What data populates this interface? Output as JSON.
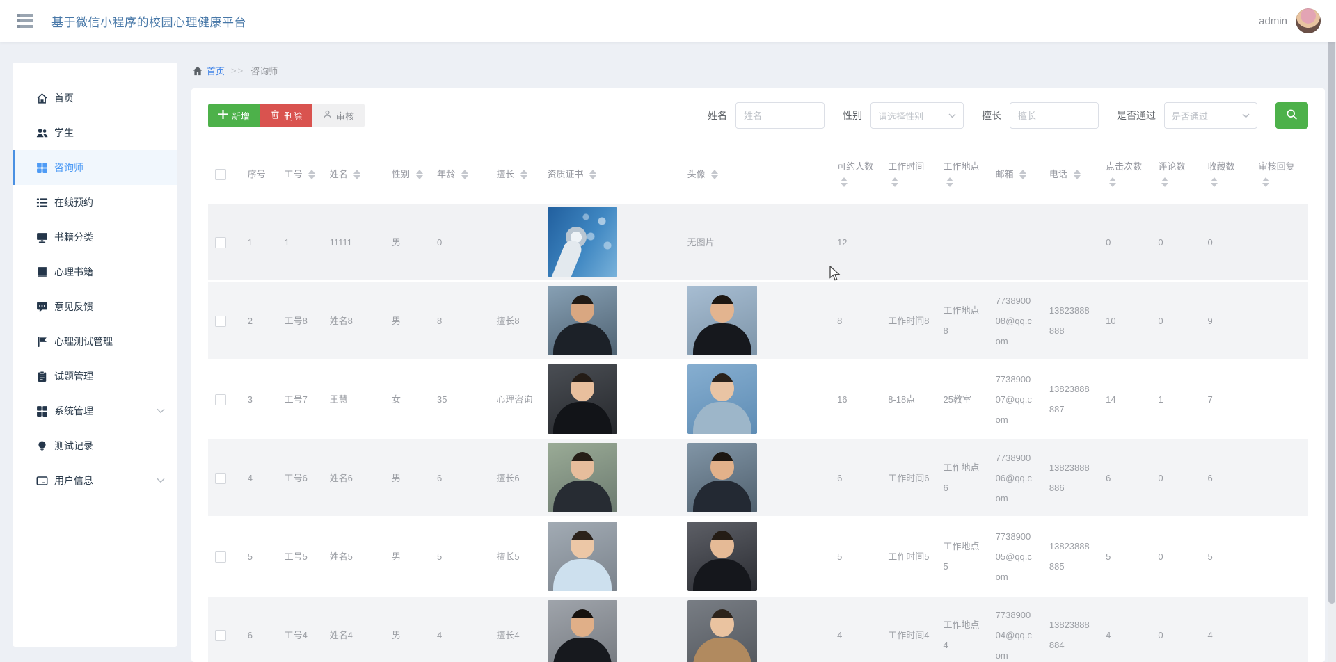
{
  "header": {
    "title": "基于微信小程序的校园心理健康平台",
    "user": "admin",
    "menu_icon": "hamburger-icon",
    "avatar_icon": "user-avatar"
  },
  "sidebar": {
    "items": [
      {
        "label": "首页",
        "icon": "home-icon",
        "active": false,
        "chevron": false
      },
      {
        "label": "学生",
        "icon": "students-icon",
        "active": false,
        "chevron": false
      },
      {
        "label": "咨询师",
        "icon": "grid-icon",
        "active": true,
        "chevron": false
      },
      {
        "label": "在线预约",
        "icon": "list-icon",
        "active": false,
        "chevron": false
      },
      {
        "label": "书籍分类",
        "icon": "monitor-icon",
        "active": false,
        "chevron": false
      },
      {
        "label": "心理书籍",
        "icon": "book-icon",
        "active": false,
        "chevron": false
      },
      {
        "label": "意见反馈",
        "icon": "feedback-icon",
        "active": false,
        "chevron": false
      },
      {
        "label": "心理测试管理",
        "icon": "flag-icon",
        "active": false,
        "chevron": false
      },
      {
        "label": "试题管理",
        "icon": "clipboard-icon",
        "active": false,
        "chevron": false
      },
      {
        "label": "系统管理",
        "icon": "grid-icon",
        "active": false,
        "chevron": true
      },
      {
        "label": "测试记录",
        "icon": "bulb-icon",
        "active": false,
        "chevron": false
      },
      {
        "label": "用户信息",
        "icon": "card-icon",
        "active": false,
        "chevron": true
      }
    ]
  },
  "breadcrumb": {
    "home": "首页",
    "separator": ">>",
    "current": "咨询师",
    "home_icon": "home-icon"
  },
  "toolbar": {
    "add_label": "新增",
    "add_icon": "plus-icon",
    "delete_label": "删除",
    "delete_icon": "trash-icon",
    "audit_label": "审核",
    "audit_icon": "person-icon"
  },
  "filters": {
    "name_label": "姓名",
    "name_placeholder": "姓名",
    "gender_label": "性别",
    "gender_placeholder": "请选择性别",
    "specialty_label": "擅长",
    "specialty_placeholder": "擅长",
    "pass_label": "是否通过",
    "pass_placeholder": "是否通过",
    "search_icon": "search-icon"
  },
  "table": {
    "columns": [
      {
        "key": "check",
        "label": "",
        "sortable": false,
        "checkbox": true
      },
      {
        "key": "seq",
        "label": "序号",
        "sortable": false
      },
      {
        "key": "job_no",
        "label": "工号",
        "sortable": true
      },
      {
        "key": "name",
        "label": "姓名",
        "sortable": true
      },
      {
        "key": "gender",
        "label": "性别",
        "sortable": true
      },
      {
        "key": "age",
        "label": "年龄",
        "sortable": true
      },
      {
        "key": "specialty",
        "label": "擅长",
        "sortable": true
      },
      {
        "key": "cert",
        "label": "资质证书",
        "sortable": true
      },
      {
        "key": "avatar",
        "label": "头像",
        "sortable": true
      },
      {
        "key": "bookable",
        "label": "可约人数",
        "sortable": true
      },
      {
        "key": "work_time",
        "label": "工作时间",
        "sortable": true
      },
      {
        "key": "work_place",
        "label": "工作地点",
        "sortable": true
      },
      {
        "key": "email",
        "label": "邮箱",
        "sortable": true
      },
      {
        "key": "phone",
        "label": "电话",
        "sortable": true
      },
      {
        "key": "clicks",
        "label": "点击次数",
        "sortable": true
      },
      {
        "key": "comments",
        "label": "评论数",
        "sortable": true
      },
      {
        "key": "favorites",
        "label": "收藏数",
        "sortable": true
      },
      {
        "key": "audit_reply",
        "label": "审核回复",
        "sortable": true
      }
    ],
    "rows": [
      {
        "seq": "1",
        "job_no": "1",
        "name": "11111",
        "gender": "男",
        "age": "0",
        "specialty": "",
        "cert_photo": "tech-blue",
        "avatar_photo": "",
        "avatar_text": "无图片",
        "bookable": "12",
        "work_time": "",
        "work_place": "",
        "email": "",
        "phone": "",
        "clicks": "0",
        "comments": "0",
        "favorites": "0",
        "audit_reply": "",
        "hovered": true
      },
      {
        "seq": "2",
        "job_no": "工号8",
        "name": "姓名8",
        "gender": "男",
        "age": "8",
        "specialty": "擅长8",
        "cert_photo": "man-suit-1",
        "avatar_photo": "man-suit-2",
        "avatar_text": "",
        "bookable": "8",
        "work_time": "工作时间8",
        "work_place": "工作地点8",
        "email": "773890008@qq.com",
        "phone": "13823888888",
        "clicks": "10",
        "comments": "0",
        "favorites": "9",
        "audit_reply": "",
        "hovered": false
      },
      {
        "seq": "3",
        "job_no": "工号7",
        "name": "王慧",
        "gender": "女",
        "age": "35",
        "specialty": "心理咨询",
        "cert_photo": "woman-dark-1",
        "avatar_photo": "woman-blue-1",
        "avatar_text": "",
        "bookable": "16",
        "work_time": "8-18点",
        "work_place": "25教室",
        "email": "773890007@qq.com",
        "phone": "13823888887",
        "clicks": "14",
        "comments": "1",
        "favorites": "7",
        "audit_reply": "",
        "hovered": false
      },
      {
        "seq": "4",
        "job_no": "工号6",
        "name": "姓名6",
        "gender": "男",
        "age": "6",
        "specialty": "擅长6",
        "cert_photo": "woman-outdoor",
        "avatar_photo": "man-suit-3",
        "avatar_text": "",
        "bookable": "6",
        "work_time": "工作时间6",
        "work_place": "工作地点6",
        "email": "773890006@qq.com",
        "phone": "13823888886",
        "clicks": "6",
        "comments": "0",
        "favorites": "6",
        "audit_reply": "",
        "hovered": false
      },
      {
        "seq": "5",
        "job_no": "工号5",
        "name": "姓名5",
        "gender": "男",
        "age": "5",
        "specialty": "擅长5",
        "cert_photo": "woman-shirt",
        "avatar_photo": "woman-dark-2",
        "avatar_text": "",
        "bookable": "5",
        "work_time": "工作时间5",
        "work_place": "工作地点5",
        "email": "773890005@qq.com",
        "phone": "13823888885",
        "clicks": "5",
        "comments": "0",
        "favorites": "5",
        "audit_reply": "",
        "hovered": false
      },
      {
        "seq": "6",
        "job_no": "工号4",
        "name": "姓名4",
        "gender": "男",
        "age": "4",
        "specialty": "擅长4",
        "cert_photo": "man-suit-4",
        "avatar_photo": "woman-coat",
        "avatar_text": "",
        "bookable": "4",
        "work_time": "工作时间4",
        "work_place": "工作地点4",
        "email": "773890004@qq.com",
        "phone": "13823888884",
        "clicks": "4",
        "comments": "0",
        "favorites": "4",
        "audit_reply": "",
        "hovered": false
      }
    ]
  },
  "colors": {
    "primary_blue": "#4a90e2",
    "title_blue": "#4878a8",
    "green": "#4db14a",
    "red": "#d9534f",
    "stripe_gray": "#f3f4f6",
    "page_bg": "#edf0f5"
  }
}
